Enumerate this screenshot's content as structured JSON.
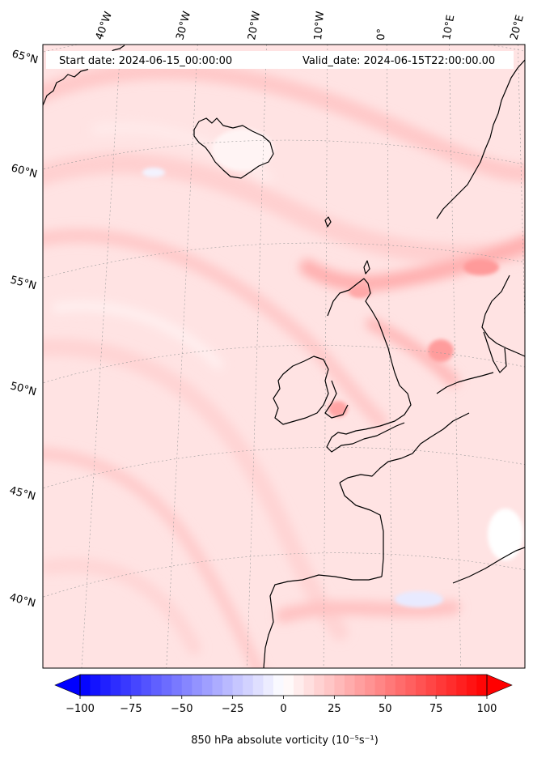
{
  "map": {
    "start_label": "Start date: 2024-06-15_00:00:00",
    "valid_label": "Valid_date: 2024-06-15T22:00:00.00",
    "lon_labels": [
      "40°W",
      "30°W",
      "20°W",
      "10°W",
      "0°",
      "10°E",
      "20°E"
    ],
    "lat_labels": [
      "65°N",
      "60°N",
      "55°N",
      "50°N",
      "45°N",
      "40°N"
    ],
    "field_name": "850 hPa absolute vorticity",
    "field_units": "(10⁻⁵s⁻¹)",
    "coastline_color": "#000000",
    "land_border": "black"
  },
  "colorbar": {
    "ticks": [
      "−100",
      "−75",
      "−50",
      "−25",
      "0",
      "25",
      "50",
      "75",
      "100"
    ],
    "min_value": -100,
    "max_value": 100,
    "step": 5,
    "extend": "both",
    "colormap": "bwr",
    "color_low": "#0000ff",
    "color_mid": "#ffffff",
    "color_high": "#ff0000"
  }
}
